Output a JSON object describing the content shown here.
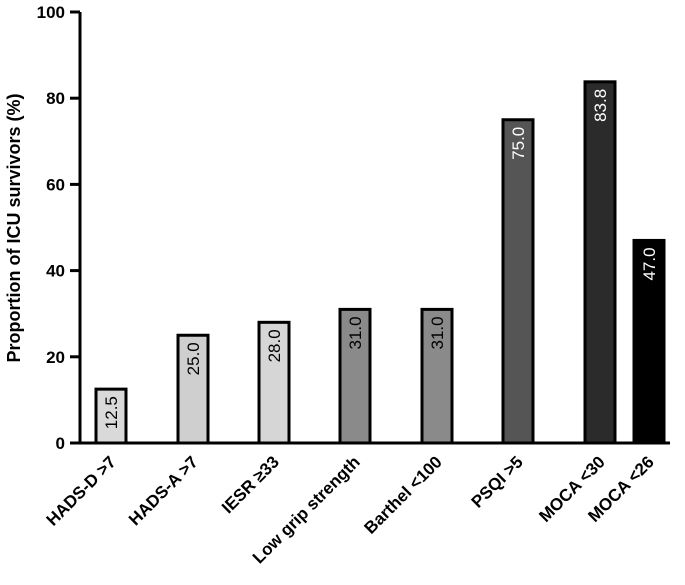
{
  "chart_data": {
    "type": "bar",
    "title": "",
    "xlabel": "",
    "ylabel": "Proportion of ICU survivors (%)",
    "ylim": [
      0,
      100
    ],
    "yticks": [
      0,
      20,
      40,
      60,
      80,
      100
    ],
    "grid": false,
    "categories": [
      "HADS-D >7",
      "HADS-A >7",
      "IESR ≥33",
      "Low grip strength",
      "Barthel <100",
      "PSQI >5",
      "MOCA <30",
      "MOCA <26"
    ],
    "values": [
      12.5,
      25.0,
      28.0,
      31.0,
      31.0,
      75.0,
      83.8,
      47.0
    ],
    "data_labels": [
      "12.5",
      "25.0",
      "28.0",
      "31.0",
      "31.0",
      "75.0",
      "83.8",
      "47.0"
    ],
    "bar_colors": [
      "#d9d9d9",
      "#cfcfcf",
      "#d6d6d6",
      "#8a8a8a",
      "#8a8a8a",
      "#555555",
      "#2b2b2b",
      "#000000"
    ],
    "label_colors": [
      "#000000",
      "#000000",
      "#000000",
      "#000000",
      "#000000",
      "#ffffff",
      "#ffffff",
      "#ffffff"
    ]
  }
}
